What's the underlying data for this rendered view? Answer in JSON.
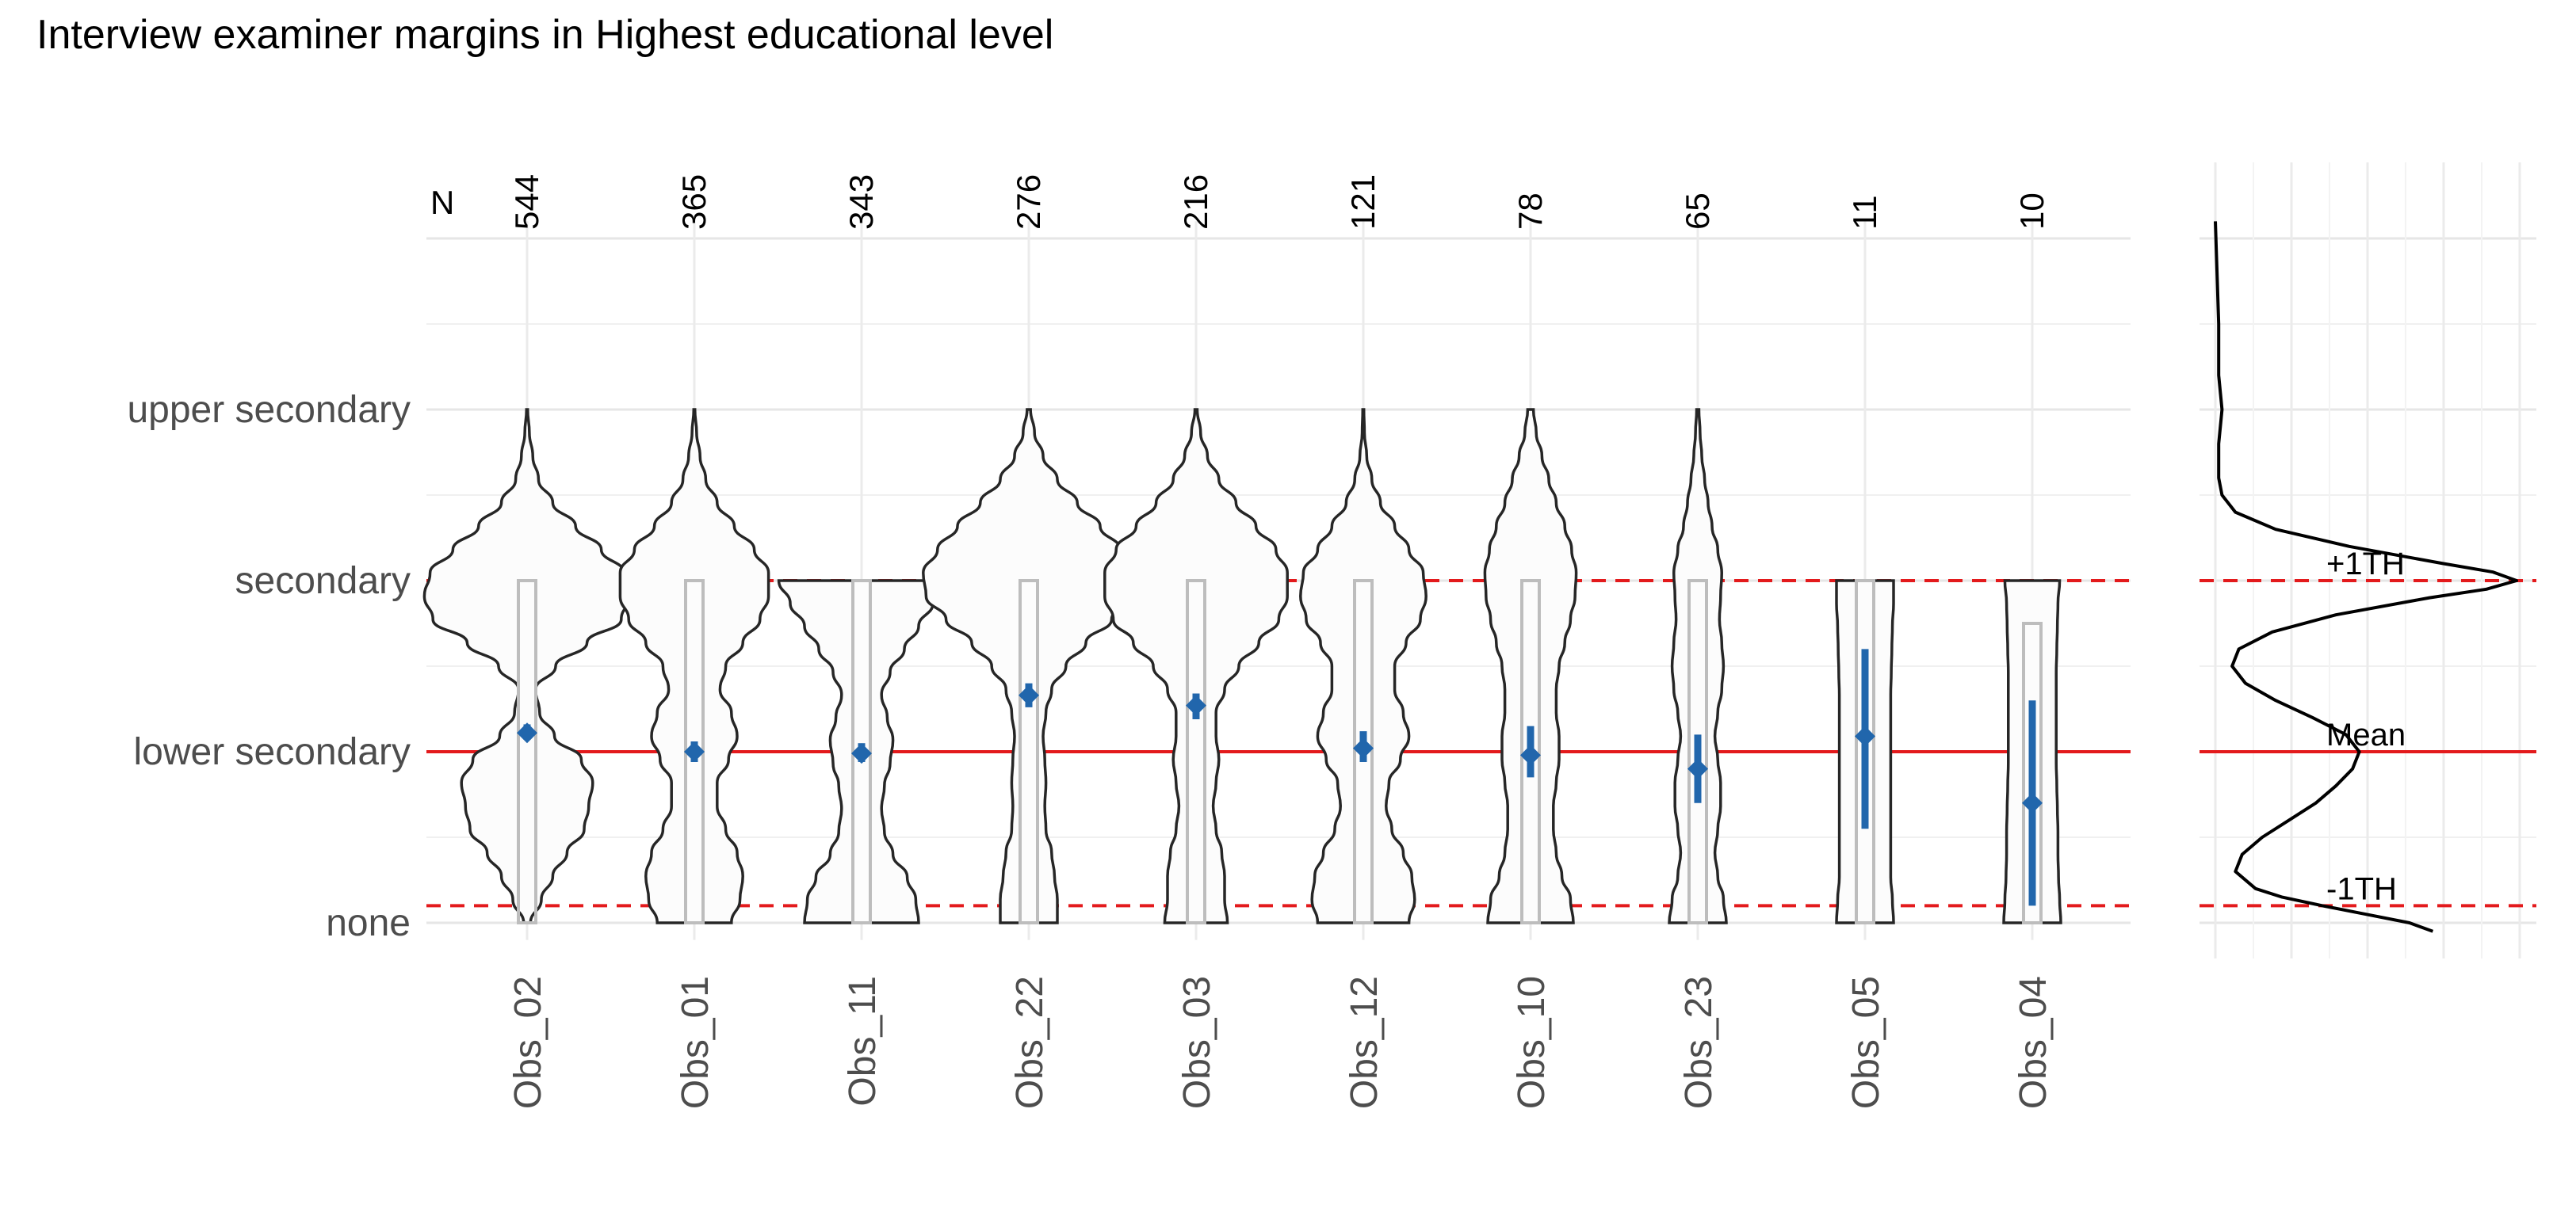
{
  "chart_data": {
    "type": "violin",
    "title": "Interview examiner margins in Highest educational level",
    "y_categories": [
      "none",
      "lower secondary",
      "secondary",
      "upper secondary"
    ],
    "n_header": "N",
    "observers": [
      {
        "name": "Obs_02",
        "n": "544",
        "mean": 1.11,
        "ci": [
          1.07,
          1.16
        ],
        "box": [
          0,
          2
        ],
        "shape": [
          0.06,
          0.25,
          0.45,
          0.7,
          1,
          1.08,
          1.15,
          0.95,
          0.48,
          0.22,
          0.15,
          0.5,
          1.05,
          1.65,
          1.8,
          1.7,
          1.3,
          0.85,
          0.45,
          0.2,
          0.1,
          0.04,
          0.01
        ]
      },
      {
        "name": "Obs_01",
        "n": "365",
        "mean": 1.0,
        "ci": [
          0.94,
          1.06
        ],
        "box": [
          0,
          2
        ],
        "shape": [
          0.65,
          0.8,
          0.85,
          0.75,
          0.55,
          0.4,
          0.4,
          0.6,
          0.75,
          0.65,
          0.45,
          0.55,
          0.85,
          1.15,
          1.3,
          1.3,
          1.05,
          0.7,
          0.4,
          0.2,
          0.1,
          0.04,
          0.01
        ]
      },
      {
        "name": "Obs_11",
        "n": "343",
        "mean": 0.99,
        "ci": [
          0.94,
          1.05
        ],
        "box": [
          0,
          2
        ],
        "shape": [
          1.0,
          0.95,
          0.8,
          0.55,
          0.4,
          0.35,
          0.4,
          0.5,
          0.55,
          0.45,
          0.35,
          0.5,
          0.75,
          1.0,
          1.25,
          1.45
        ]
      },
      {
        "name": "Obs_22",
        "n": "276",
        "mean": 1.33,
        "ci": [
          1.26,
          1.4
        ],
        "box": [
          0,
          2
        ],
        "shape": [
          0.5,
          0.5,
          0.45,
          0.4,
          0.3,
          0.28,
          0.3,
          0.28,
          0.25,
          0.3,
          0.4,
          0.65,
          1.0,
          1.45,
          1.8,
          1.85,
          1.6,
          1.25,
          0.85,
          0.5,
          0.25,
          0.1,
          0.03
        ]
      },
      {
        "name": "Obs_03",
        "n": "216",
        "mean": 1.27,
        "ci": [
          1.19,
          1.34
        ],
        "box": [
          0,
          2
        ],
        "shape": [
          0.55,
          0.5,
          0.5,
          0.45,
          0.35,
          0.3,
          0.35,
          0.4,
          0.35,
          0.35,
          0.5,
          0.75,
          1.1,
          1.45,
          1.6,
          1.6,
          1.4,
          1.05,
          0.7,
          0.4,
          0.2,
          0.08,
          0.02
        ]
      },
      {
        "name": "Obs_12",
        "n": "121",
        "mean": 1.02,
        "ci": [
          0.94,
          1.12
        ],
        "box": [
          0,
          2
        ],
        "shape": [
          0.8,
          0.9,
          0.85,
          0.7,
          0.5,
          0.4,
          0.45,
          0.65,
          0.8,
          0.7,
          0.55,
          0.55,
          0.75,
          1.0,
          1.1,
          1.05,
          0.8,
          0.55,
          0.3,
          0.15,
          0.06,
          0.02,
          0.01
        ]
      },
      {
        "name": "Obs_10",
        "n": "78",
        "mean": 0.98,
        "ci": [
          0.85,
          1.15
        ],
        "box": [
          0,
          2
        ],
        "shape": [
          0.75,
          0.7,
          0.55,
          0.45,
          0.4,
          0.4,
          0.45,
          0.5,
          0.5,
          0.45,
          0.45,
          0.5,
          0.6,
          0.7,
          0.78,
          0.8,
          0.72,
          0.6,
          0.45,
          0.32,
          0.2,
          0.1,
          0.05
        ]
      },
      {
        "name": "Obs_23",
        "n": "65",
        "mean": 0.9,
        "ci": [
          0.7,
          1.1
        ],
        "box": [
          0,
          2
        ],
        "shape": [
          0.5,
          0.45,
          0.35,
          0.3,
          0.35,
          0.4,
          0.4,
          0.35,
          0.3,
          0.35,
          0.42,
          0.45,
          0.42,
          0.38,
          0.4,
          0.42,
          0.35,
          0.25,
          0.18,
          0.12,
          0.07,
          0.04,
          0.02
        ]
      },
      {
        "name": "Obs_05",
        "n": "11",
        "mean": 1.09,
        "ci": [
          0.55,
          1.6
        ],
        "box": [
          0,
          2
        ],
        "shape": [
          0.5,
          0.48,
          0.45,
          0.45,
          0.45,
          0.45,
          0.45,
          0.45,
          0.45,
          0.45,
          0.45,
          0.46,
          0.47,
          0.48,
          0.5,
          0.5
        ]
      },
      {
        "name": "Obs_04",
        "n": "10",
        "mean": 0.7,
        "ci": [
          0.1,
          1.3
        ],
        "box": [
          0,
          1.75
        ],
        "shape": [
          0.5,
          0.48,
          0.46,
          0.45,
          0.45,
          0.44,
          0.43,
          0.42,
          0.42,
          0.42,
          0.42,
          0.42,
          0.43,
          0.44,
          0.45,
          0.48
        ]
      }
    ],
    "reference_lines": {
      "mean": 1.0,
      "plus_1th": 2.0,
      "minus_1th": 0.1
    },
    "side_labels": {
      "plus": "+1TH",
      "mean": "Mean",
      "minus": "-1TH"
    },
    "density_curve": [
      [
        -0.05,
        0.65
      ],
      [
        0,
        0.58
      ],
      [
        0.05,
        0.45
      ],
      [
        0.1,
        0.32
      ],
      [
        0.15,
        0.2
      ],
      [
        0.2,
        0.12
      ],
      [
        0.3,
        0.06
      ],
      [
        0.4,
        0.08
      ],
      [
        0.5,
        0.14
      ],
      [
        0.6,
        0.22
      ],
      [
        0.7,
        0.3
      ],
      [
        0.8,
        0.36
      ],
      [
        0.9,
        0.41
      ],
      [
        1.0,
        0.43
      ],
      [
        1.1,
        0.39
      ],
      [
        1.2,
        0.29
      ],
      [
        1.3,
        0.18
      ],
      [
        1.4,
        0.09
      ],
      [
        1.5,
        0.05
      ],
      [
        1.6,
        0.07
      ],
      [
        1.7,
        0.17
      ],
      [
        1.8,
        0.36
      ],
      [
        1.9,
        0.64
      ],
      [
        1.95,
        0.81
      ],
      [
        2.0,
        0.9
      ],
      [
        2.05,
        0.83
      ],
      [
        2.1,
        0.68
      ],
      [
        2.2,
        0.4
      ],
      [
        2.3,
        0.18
      ],
      [
        2.4,
        0.06
      ],
      [
        2.5,
        0.02
      ],
      [
        2.6,
        0.01
      ],
      [
        2.8,
        0.01
      ],
      [
        3.0,
        0.02
      ],
      [
        3.2,
        0.01
      ],
      [
        3.5,
        0.01
      ],
      [
        4.1,
        0.0
      ]
    ],
    "ylim": [
      -0.1,
      4.1
    ]
  }
}
